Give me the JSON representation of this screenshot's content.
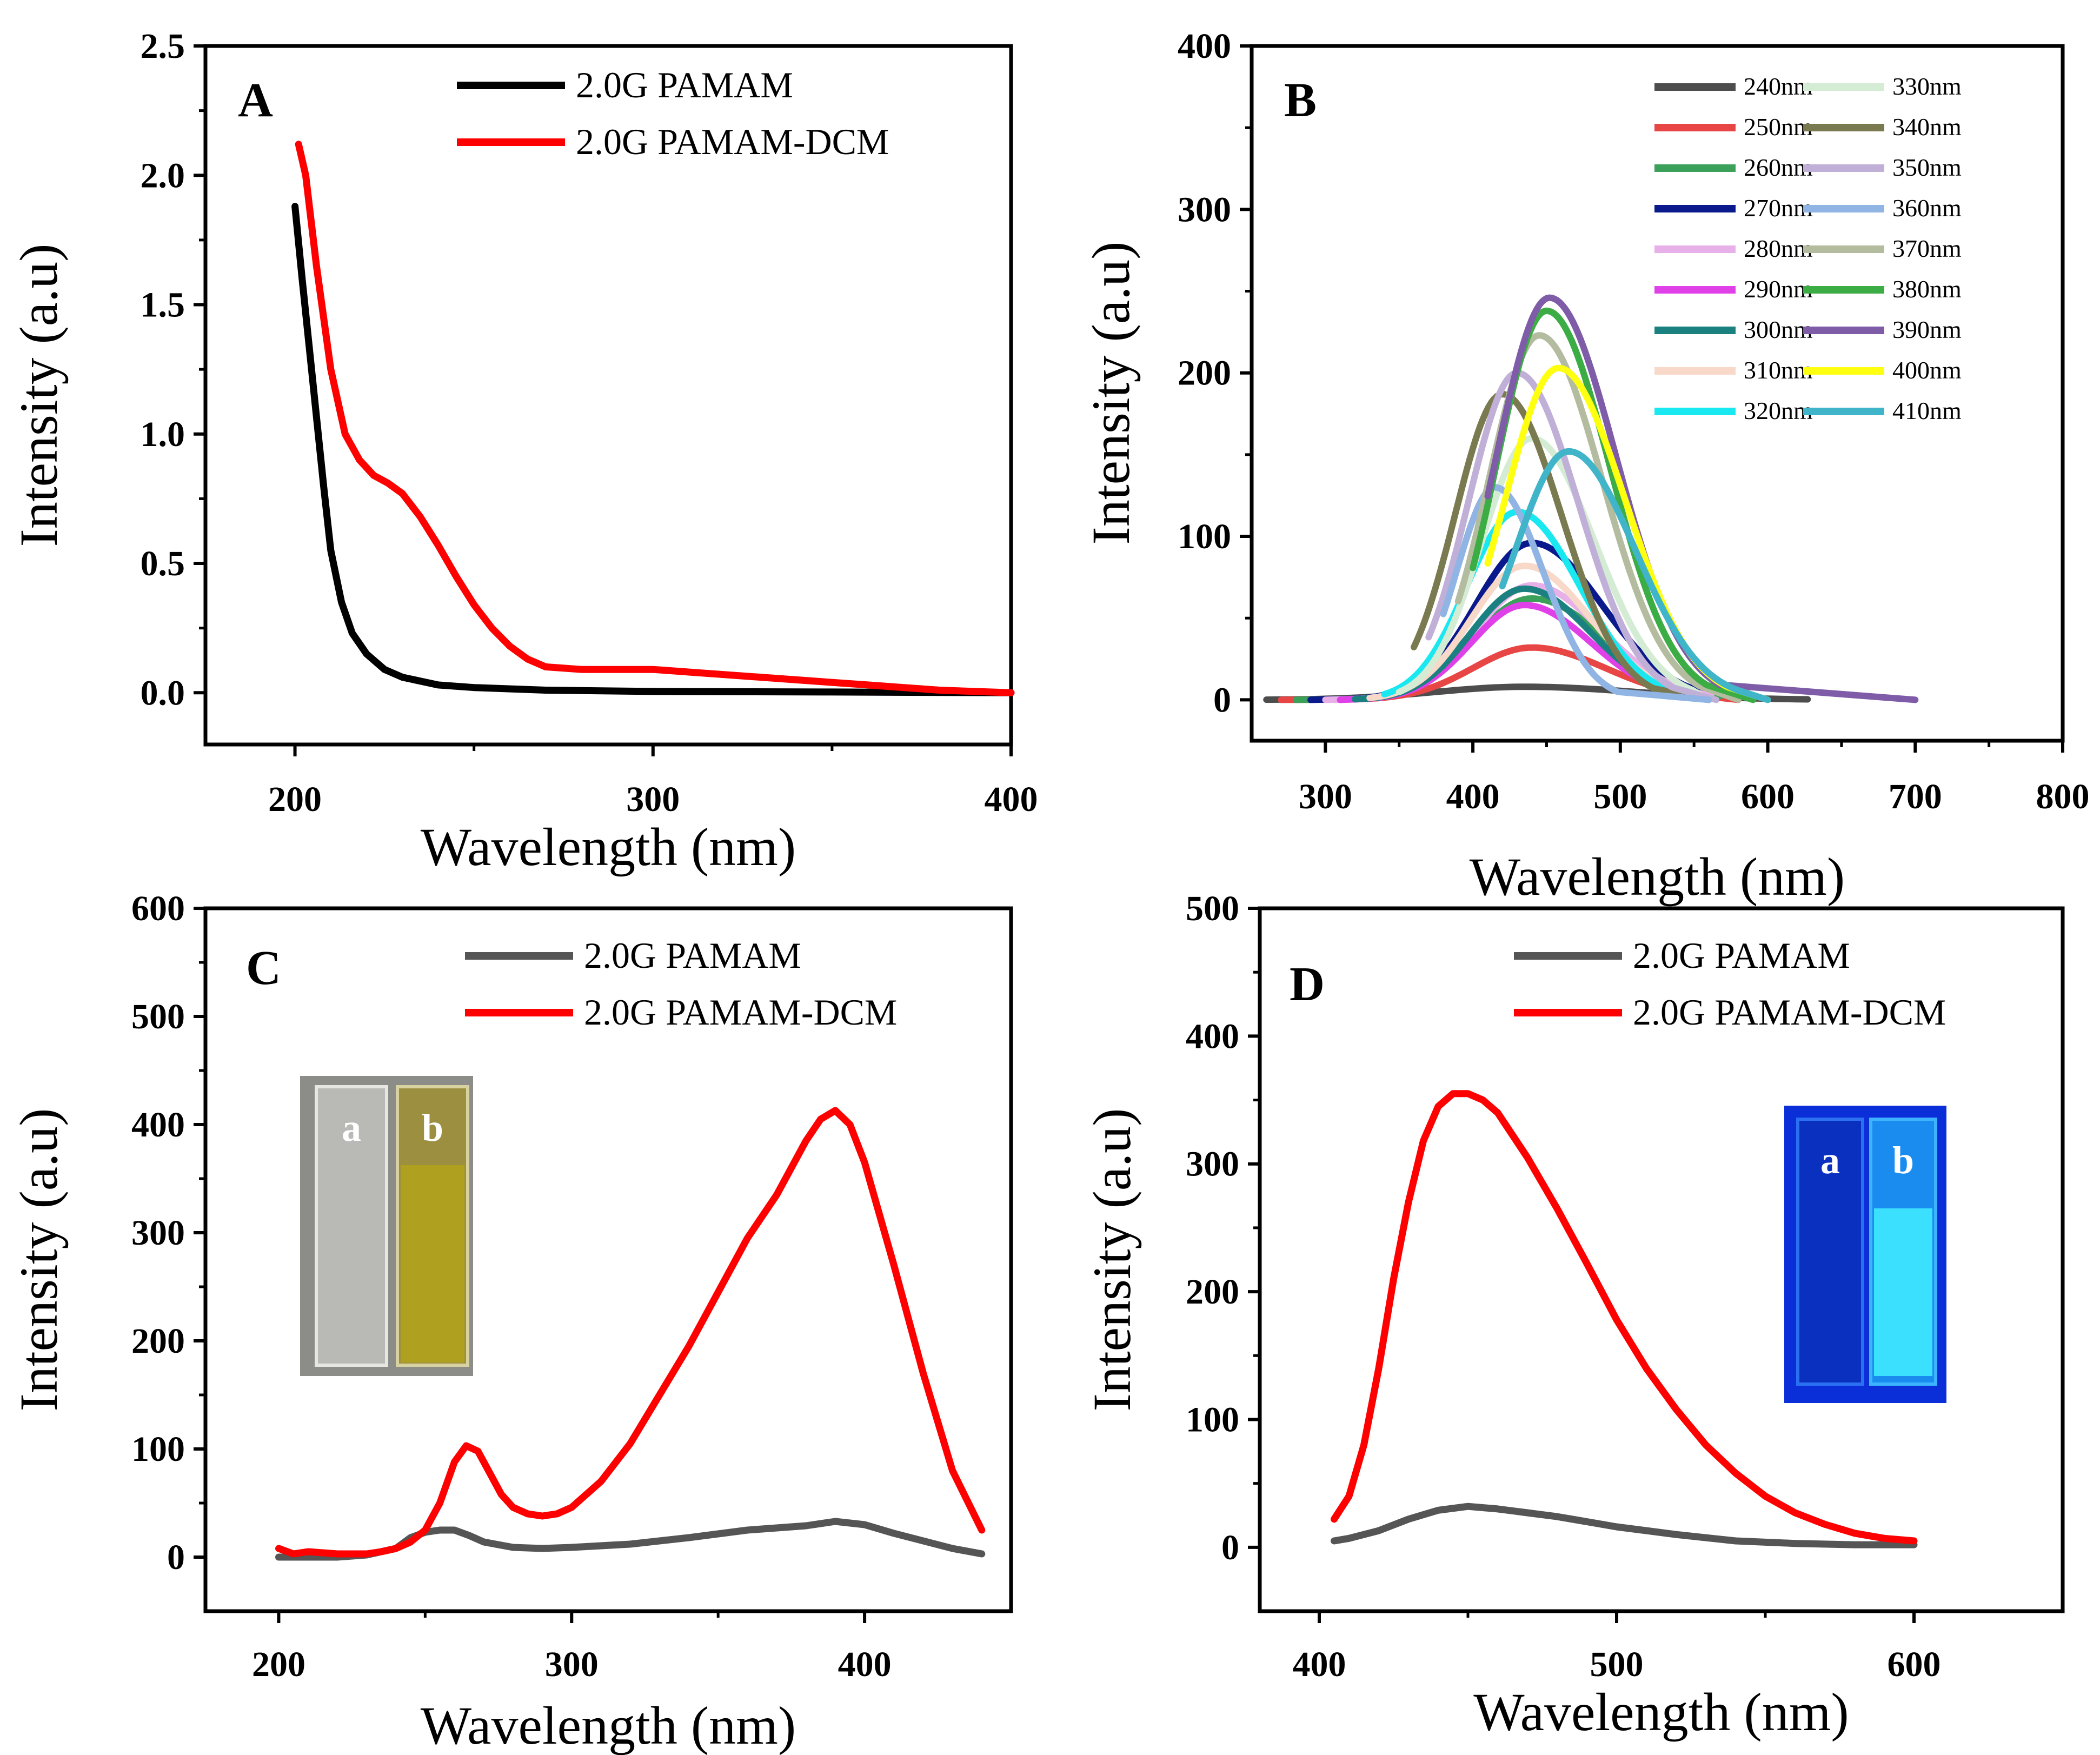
{
  "chart_data": [
    {
      "panel": "A",
      "type": "line",
      "xlabel": "Wavelength (nm)",
      "ylabel": "Intensity (a.u)",
      "xlim": [
        175,
        400
      ],
      "ylim": [
        -0.2,
        2.5
      ],
      "xticks": [
        200,
        300,
        400
      ],
      "yticks": [
        0.0,
        0.5,
        1.0,
        1.5,
        2.0,
        2.5
      ],
      "yticks_labels": [
        "0.0",
        "0.5",
        "1.0",
        "1.5",
        "2.0",
        "2.5"
      ],
      "legend_position": "top-right",
      "series": [
        {
          "name": "2.0G PAMAM",
          "color": "#000000",
          "x": [
            200,
            202,
            205,
            208,
            210,
            213,
            216,
            220,
            225,
            230,
            240,
            250,
            270,
            300,
            350,
            400
          ],
          "y": [
            1.88,
            1.6,
            1.2,
            0.8,
            0.55,
            0.35,
            0.23,
            0.15,
            0.09,
            0.06,
            0.03,
            0.02,
            0.01,
            0.005,
            0.003,
            0.0
          ]
        },
        {
          "name": "2.0G PAMAM-DCM",
          "color": "#ff0000",
          "x": [
            201,
            203,
            206,
            210,
            214,
            218,
            222,
            226,
            230,
            235,
            240,
            245,
            250,
            255,
            260,
            265,
            270,
            280,
            290,
            300,
            320,
            340,
            360,
            380,
            400
          ],
          "y": [
            2.12,
            2.0,
            1.65,
            1.25,
            1.0,
            0.9,
            0.84,
            0.81,
            0.77,
            0.68,
            0.57,
            0.45,
            0.34,
            0.25,
            0.18,
            0.13,
            0.1,
            0.09,
            0.09,
            0.09,
            0.07,
            0.05,
            0.03,
            0.01,
            0.0
          ]
        }
      ]
    },
    {
      "panel": "B",
      "type": "line",
      "xlabel": "Wavelength (nm)",
      "ylabel": "Intensity (a.u)",
      "xlim": [
        250,
        800
      ],
      "ylim": [
        -25,
        400
      ],
      "xticks": [
        300,
        400,
        500,
        600,
        700,
        800
      ],
      "yticks": [
        0,
        100,
        200,
        300,
        400
      ],
      "legend_position": "top-right",
      "series": [
        {
          "name": "240nm",
          "color": "#4d4d4d",
          "start": 260,
          "peak_x": 435,
          "peak": 8,
          "width": 60,
          "end": 600
        },
        {
          "name": "250nm",
          "color": "#e84545",
          "start": 270,
          "peak_x": 440,
          "peak": 32,
          "width": 40,
          "end": 580
        },
        {
          "name": "260nm",
          "color": "#3aa05a",
          "start": 280,
          "peak_x": 440,
          "peak": 62,
          "width": 40,
          "end": 560
        },
        {
          "name": "270nm",
          "color": "#0a1a8c",
          "start": 290,
          "peak_x": 440,
          "peak": 96,
          "width": 38,
          "end": 550
        },
        {
          "name": "280nm",
          "color": "#e8b0e8",
          "start": 300,
          "peak_x": 440,
          "peak": 70,
          "width": 38,
          "end": 540
        },
        {
          "name": "290nm",
          "color": "#e040e8",
          "start": 310,
          "peak_x": 435,
          "peak": 58,
          "width": 36,
          "end": 535
        },
        {
          "name": "300nm",
          "color": "#1a8080",
          "start": 320,
          "peak_x": 435,
          "peak": 68,
          "width": 36,
          "end": 530
        },
        {
          "name": "310nm",
          "color": "#f8d8c8",
          "start": 330,
          "peak_x": 435,
          "peak": 82,
          "width": 36,
          "end": 525
        },
        {
          "name": "320nm",
          "color": "#1ae8f0",
          "start": 340,
          "peak_x": 430,
          "peak": 115,
          "width": 34,
          "end": 520
        },
        {
          "name": "330nm",
          "color": "#d4ecd4",
          "start": 350,
          "peak_x": 440,
          "peak": 160,
          "width": 34,
          "end": 560
        },
        {
          "name": "340nm",
          "color": "#7a7a50",
          "start": 360,
          "peak_x": 420,
          "peak": 187,
          "width": 32,
          "end": 560
        },
        {
          "name": "350nm",
          "color": "#c0b0d8",
          "start": 370,
          "peak_x": 430,
          "peak": 200,
          "width": 33,
          "end": 565
        },
        {
          "name": "360nm",
          "color": "#90b4e4",
          "start": 380,
          "peak_x": 415,
          "peak": 130,
          "width": 26,
          "end": 560
        },
        {
          "name": "370nm",
          "color": "#b4bca0",
          "start": 390,
          "peak_x": 445,
          "peak": 223,
          "width": 34,
          "end": 580
        },
        {
          "name": "380nm",
          "color": "#3cac44",
          "start": 400,
          "peak_x": 450,
          "peak": 238,
          "width": 34,
          "end": 590
        },
        {
          "name": "390nm",
          "color": "#7e5ca8",
          "start": 410,
          "peak_x": 452,
          "peak": 246,
          "width": 36,
          "end": 700
        },
        {
          "name": "400nm",
          "color": "#ffff10",
          "start": 410,
          "peak_x": 458,
          "peak": 203,
          "width": 36,
          "end": 600
        },
        {
          "name": "410nm",
          "color": "#40b4c8",
          "start": 420,
          "peak_x": 465,
          "peak": 152,
          "width": 36,
          "end": 600
        }
      ]
    },
    {
      "panel": "C",
      "type": "line",
      "xlabel": "Wavelength (nm)",
      "ylabel": "Intensity (a.u)",
      "xlim": [
        175,
        450
      ],
      "ylim": [
        -50,
        600
      ],
      "xticks": [
        200,
        300,
        400
      ],
      "yticks": [
        0,
        100,
        200,
        300,
        400,
        500,
        600
      ],
      "legend_position": "top-right",
      "inset_labels": [
        "a",
        "b"
      ],
      "series": [
        {
          "name": "2.0G PAMAM",
          "color": "#555555",
          "x": [
            200,
            210,
            220,
            230,
            240,
            245,
            250,
            255,
            260,
            265,
            270,
            280,
            290,
            300,
            320,
            340,
            360,
            380,
            390,
            400,
            410,
            420,
            430,
            440
          ],
          "y": [
            0,
            0,
            0,
            2,
            8,
            18,
            23,
            25,
            25,
            20,
            14,
            9,
            8,
            9,
            12,
            18,
            25,
            29,
            33,
            30,
            22,
            15,
            8,
            3
          ]
        },
        {
          "name": "2.0G PAMAM-DCM",
          "color": "#ff0000",
          "x": [
            200,
            205,
            210,
            220,
            230,
            235,
            240,
            245,
            250,
            255,
            260,
            264,
            268,
            272,
            276,
            280,
            285,
            290,
            295,
            300,
            310,
            320,
            330,
            340,
            350,
            360,
            370,
            375,
            380,
            385,
            390,
            395,
            400,
            410,
            420,
            430,
            440
          ],
          "y": [
            8,
            3,
            5,
            3,
            3,
            5,
            8,
            14,
            25,
            50,
            88,
            103,
            98,
            78,
            58,
            46,
            40,
            38,
            40,
            46,
            70,
            105,
            150,
            195,
            245,
            295,
            335,
            360,
            385,
            405,
            413,
            400,
            365,
            270,
            170,
            80,
            25
          ]
        }
      ]
    },
    {
      "panel": "D",
      "type": "line",
      "xlabel": "Wavelength (nm)",
      "ylabel": "Intensity (a.u)",
      "xlim": [
        380,
        650
      ],
      "ylim": [
        -50,
        500
      ],
      "xticks": [
        400,
        500,
        600
      ],
      "yticks": [
        0,
        100,
        200,
        300,
        400,
        500
      ],
      "legend_position": "top-right",
      "inset_labels": [
        "a",
        "b"
      ],
      "series": [
        {
          "name": "2.0G PAMAM",
          "color": "#555555",
          "x": [
            405,
            410,
            420,
            430,
            440,
            450,
            460,
            470,
            480,
            490,
            500,
            520,
            540,
            560,
            580,
            600
          ],
          "y": [
            5,
            7,
            13,
            22,
            29,
            32,
            30,
            27,
            24,
            20,
            16,
            10,
            5,
            3,
            2,
            2
          ]
        },
        {
          "name": "2.0G PAMAM-DCM",
          "color": "#ff0000",
          "x": [
            405,
            410,
            415,
            420,
            425,
            430,
            435,
            440,
            445,
            450,
            455,
            460,
            470,
            480,
            490,
            500,
            510,
            520,
            530,
            540,
            550,
            560,
            570,
            580,
            590,
            600
          ],
          "y": [
            22,
            40,
            80,
            140,
            210,
            270,
            318,
            345,
            355,
            355,
            350,
            340,
            305,
            265,
            222,
            178,
            140,
            108,
            80,
            58,
            40,
            27,
            18,
            11,
            7,
            5
          ]
        }
      ]
    }
  ]
}
